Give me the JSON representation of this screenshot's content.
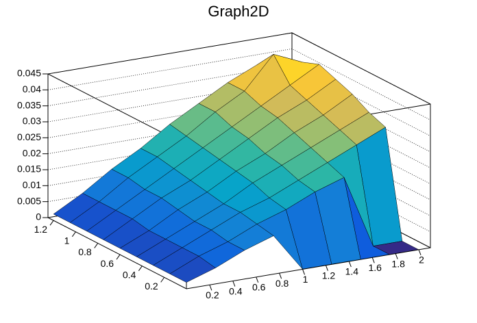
{
  "chart_data": {
    "type": "surface",
    "title": "Graph2D",
    "x": [
      0,
      0.25,
      0.5,
      0.75,
      1,
      1.25,
      1.5,
      1.75,
      2
    ],
    "y": [
      0,
      0.15,
      0.3,
      0.45,
      0.6,
      0.75,
      0.9,
      1.05,
      1.2
    ],
    "z": [
      [
        0.002,
        0.005,
        0.009,
        0.012,
        0,
        0,
        0,
        0,
        0
      ],
      [
        0.002,
        0.006,
        0.009,
        0.013,
        0.016,
        0.02,
        0.023,
        0,
        0
      ],
      [
        0.002,
        0.006,
        0.01,
        0.014,
        0.017,
        0.021,
        0.025,
        0.029,
        0.033
      ],
      [
        0.002,
        0.006,
        0.01,
        0.014,
        0.019,
        0.023,
        0.027,
        0.031,
        0.035
      ],
      [
        0.002,
        0.006,
        0.011,
        0.015,
        0.02,
        0.024,
        0.029,
        0.033,
        0.038
      ],
      [
        0.002,
        0.007,
        0.012,
        0.016,
        0.021,
        0.026,
        0.031,
        0.035,
        0.04
      ],
      [
        0.002,
        0.007,
        0.012,
        0.017,
        0.022,
        0.027,
        0.032,
        0.037,
        0.042
      ],
      [
        0.002,
        0.007,
        0.013,
        0.018,
        0.023,
        0.029,
        0.034,
        0.044,
        0.04
      ],
      [
        0.002,
        0.007,
        0.013,
        0.018,
        0.024,
        0.029,
        0.034,
        0.038,
        0.038
      ]
    ],
    "xlim": [
      0,
      2.1
    ],
    "ylim": [
      0,
      1.25
    ],
    "zlim": [
      0,
      0.045
    ],
    "xticks": [
      0.2,
      0.4,
      0.6,
      0.8,
      1,
      1.2,
      1.4,
      1.6,
      1.8,
      2
    ],
    "yticks": [
      0.2,
      0.4,
      0.6,
      0.8,
      1,
      1.2
    ],
    "zticks": [
      0,
      0.005,
      0.01,
      0.015,
      0.02,
      0.025,
      0.03,
      0.035,
      0.04,
      0.045
    ],
    "grid": true,
    "palette": [
      "#352a87",
      "#0f5cdd",
      "#1481d6",
      "#06a4ca",
      "#2eb7a4",
      "#87bf77",
      "#d1bb59",
      "#fec832",
      "#f9fb0e"
    ]
  }
}
